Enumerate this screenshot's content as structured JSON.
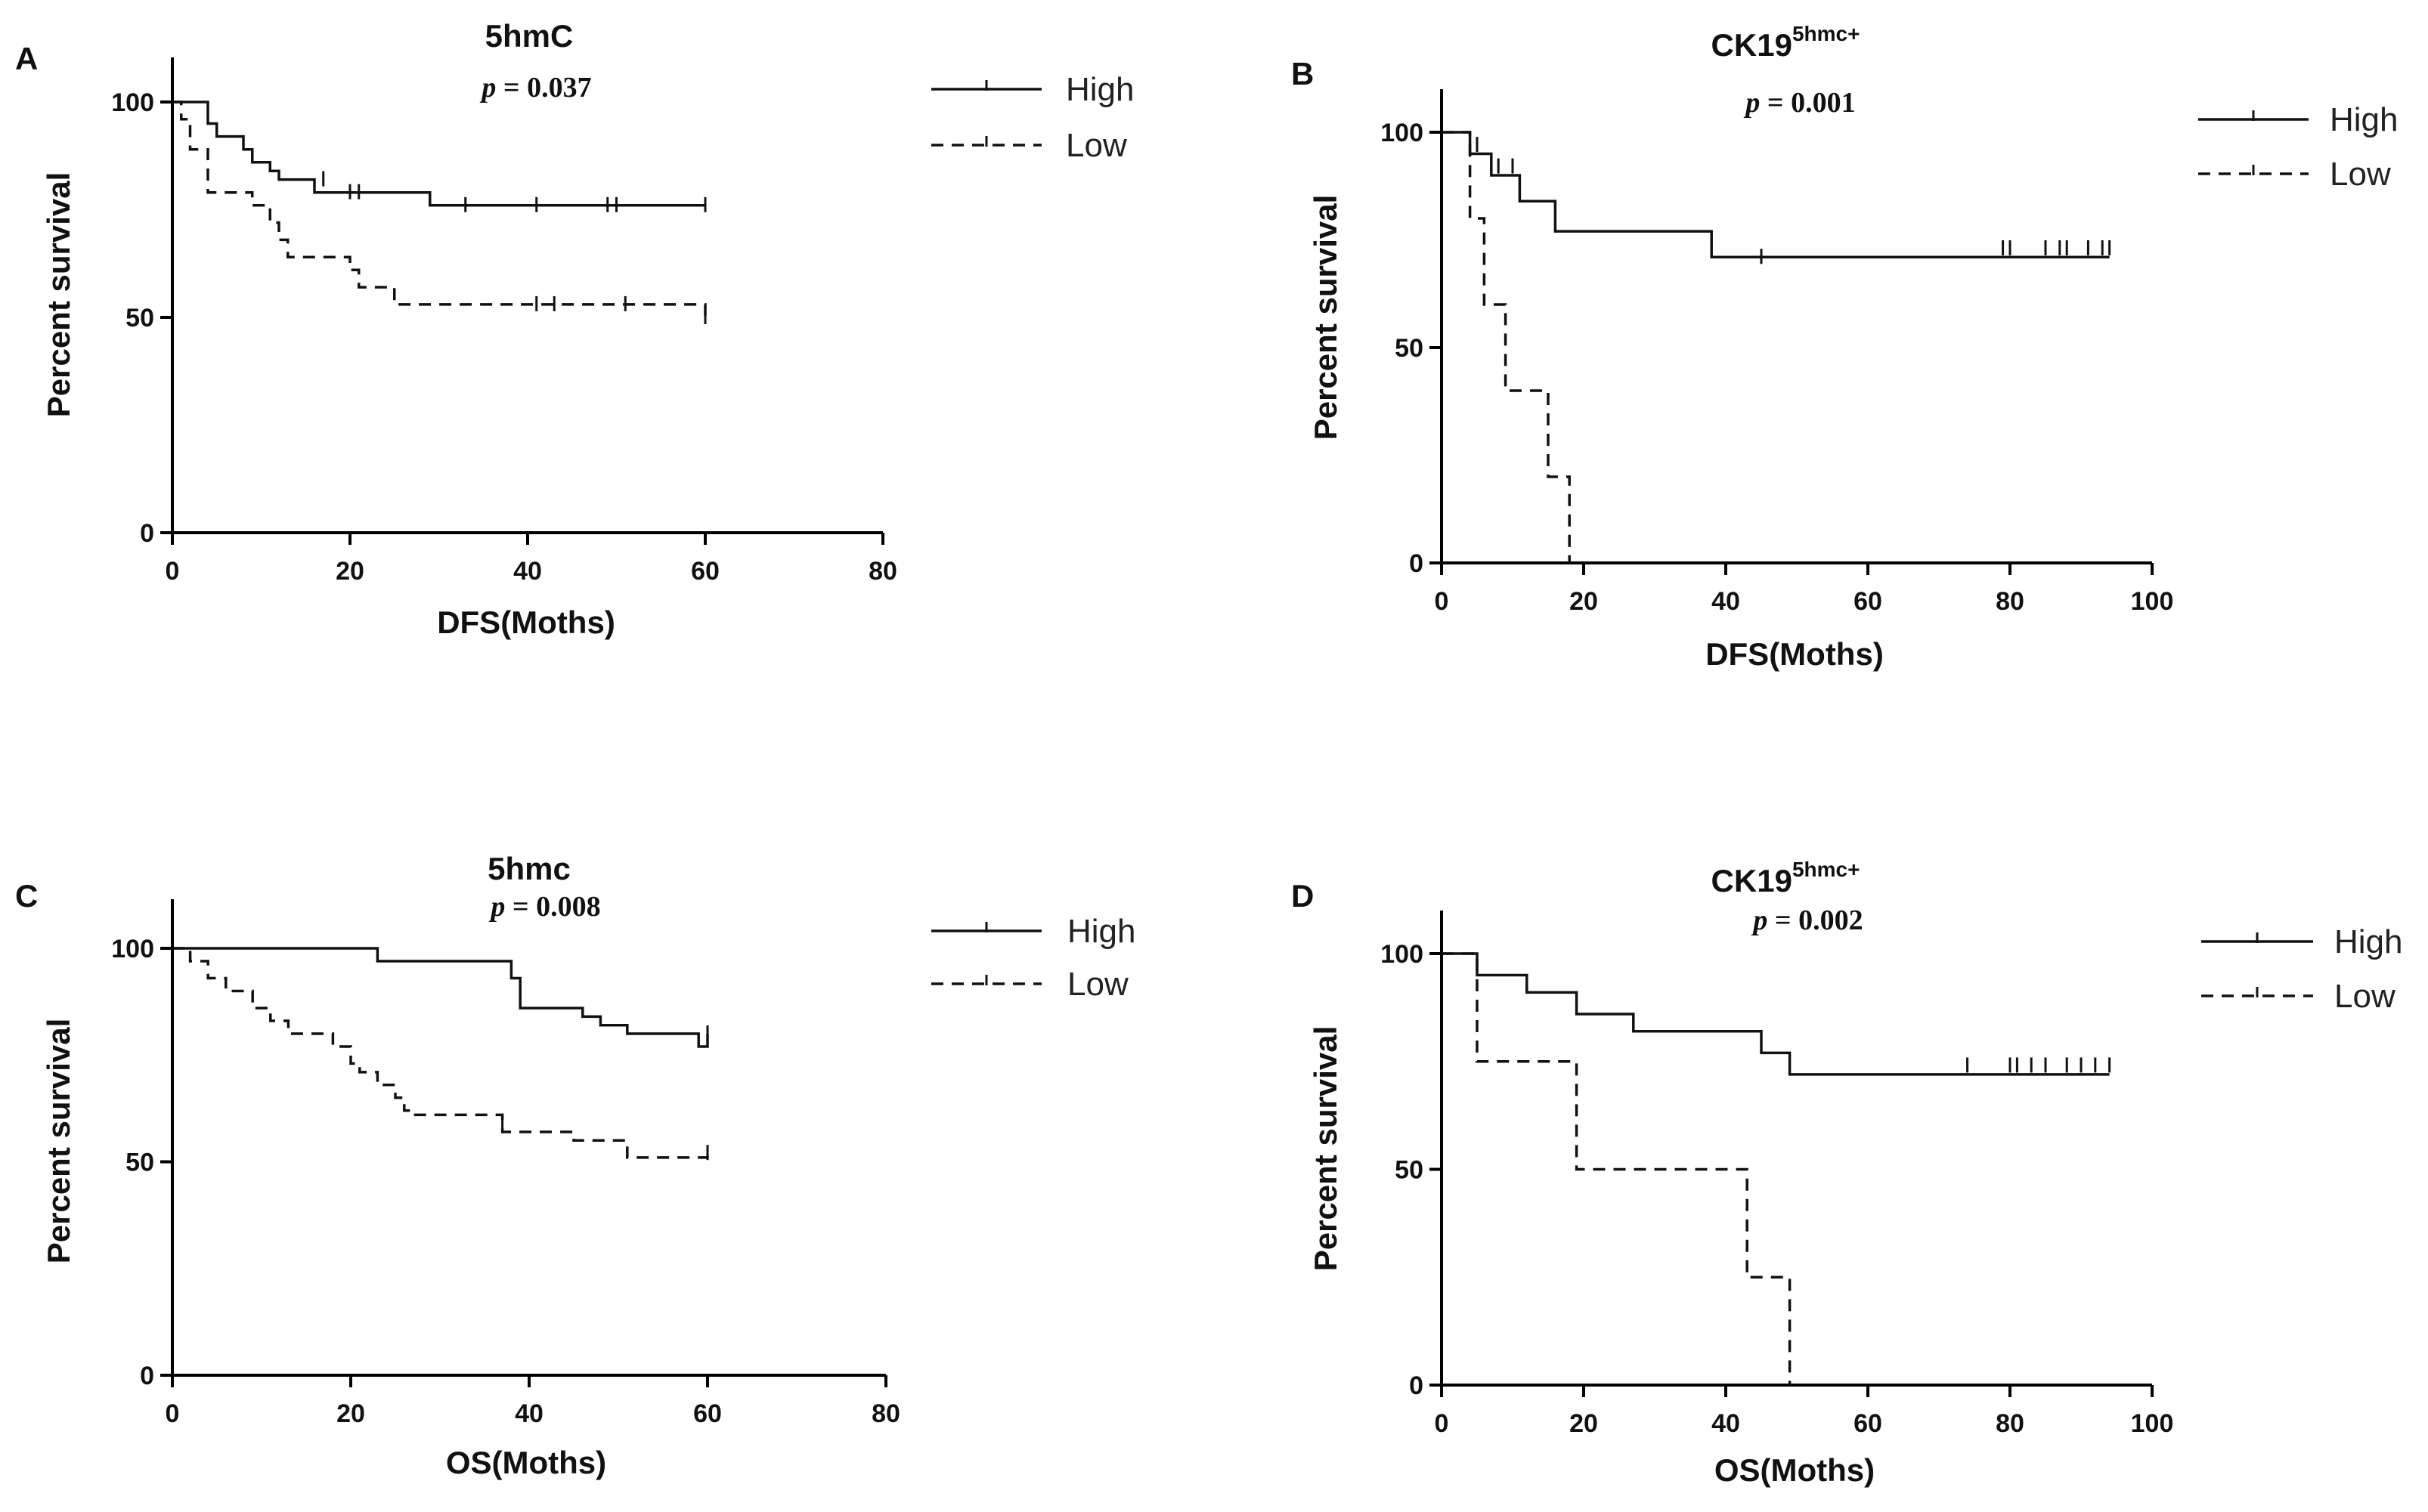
{
  "chart_data": [
    {
      "panel": "A",
      "type": "line",
      "subtype": "kaplan-meier",
      "title": "5hmC",
      "p_text": "= 0.037",
      "xlabel": "DFS(Moths)",
      "ylabel": "Percent survival",
      "xlim": [
        0,
        80
      ],
      "ylim": [
        0,
        110
      ],
      "xticks": [
        0,
        20,
        40,
        60,
        80
      ],
      "yticks": [
        0,
        50,
        100
      ],
      "legend_position": "right",
      "series": [
        {
          "name": "High",
          "style": "solid",
          "steps": [
            [
              0,
              100
            ],
            [
              4,
              95
            ],
            [
              5,
              92
            ],
            [
              8,
              89
            ],
            [
              9,
              86
            ],
            [
              11,
              84
            ],
            [
              12,
              82
            ],
            [
              16,
              79
            ],
            [
              29,
              76
            ],
            [
              60,
              76
            ]
          ],
          "censored": [
            [
              17,
              82
            ],
            [
              20,
              79
            ],
            [
              21,
              79
            ],
            [
              33,
              76
            ],
            [
              41,
              76
            ],
            [
              49,
              76
            ],
            [
              50,
              76
            ],
            [
              60,
              76
            ]
          ]
        },
        {
          "name": "Low",
          "style": "dashed",
          "steps": [
            [
              0,
              100
            ],
            [
              1,
              96
            ],
            [
              2,
              89
            ],
            [
              4,
              79
            ],
            [
              9,
              76
            ],
            [
              11,
              72
            ],
            [
              12,
              68
            ],
            [
              13,
              64
            ],
            [
              17,
              64
            ],
            [
              20,
              61
            ],
            [
              21,
              57
            ],
            [
              25,
              53
            ],
            [
              60,
              53
            ],
            [
              60,
              50
            ]
          ],
          "censored": [
            [
              41,
              53
            ],
            [
              43,
              53
            ],
            [
              51,
              53
            ],
            [
              60,
              50
            ]
          ]
        }
      ]
    },
    {
      "panel": "B",
      "type": "line",
      "subtype": "kaplan-meier",
      "title": "CK19",
      "title_sup": "5hmc+",
      "p_text": "= 0.001",
      "xlabel": "DFS(Moths)",
      "ylabel": "Percent survival",
      "xlim": [
        0,
        100
      ],
      "ylim": [
        0,
        100
      ],
      "xticks": [
        0,
        20,
        40,
        60,
        80,
        100
      ],
      "yticks": [
        0,
        50,
        100
      ],
      "legend_position": "right",
      "series": [
        {
          "name": "High",
          "style": "solid",
          "steps": [
            [
              0,
              100
            ],
            [
              4,
              95
            ],
            [
              7,
              90
            ],
            [
              11,
              84
            ],
            [
              15,
              84
            ],
            [
              16,
              77
            ],
            [
              38,
              71
            ],
            [
              94,
              71
            ]
          ],
          "censored": [
            [
              5,
              97
            ],
            [
              8,
              92
            ],
            [
              10,
              92
            ],
            [
              45,
              71
            ],
            [
              79,
              73
            ],
            [
              80,
              73
            ],
            [
              85,
              73
            ],
            [
              87,
              73
            ],
            [
              88,
              73
            ],
            [
              91,
              73
            ],
            [
              93,
              73
            ],
            [
              94,
              73
            ]
          ]
        },
        {
          "name": "Low",
          "style": "dashed",
          "steps": [
            [
              0,
              100
            ],
            [
              4,
              80
            ],
            [
              6,
              60
            ],
            [
              9,
              40
            ],
            [
              15,
              20
            ],
            [
              18,
              0
            ]
          ],
          "censored": []
        }
      ]
    },
    {
      "panel": "C",
      "type": "line",
      "subtype": "kaplan-meier",
      "title": "5hmc",
      "p_text": "= 0.008",
      "xlabel": "OS(Moths)",
      "ylabel": "Percent survival",
      "xlim": [
        0,
        80
      ],
      "ylim": [
        0,
        110
      ],
      "xticks": [
        0,
        20,
        40,
        60,
        80
      ],
      "yticks": [
        0,
        50,
        100
      ],
      "legend_position": "right",
      "series": [
        {
          "name": "High",
          "style": "solid",
          "steps": [
            [
              0,
              100
            ],
            [
              23,
              97
            ],
            [
              38,
              93
            ],
            [
              39,
              86
            ],
            [
              46,
              84
            ],
            [
              48,
              82
            ],
            [
              51,
              80
            ],
            [
              59,
              77
            ],
            [
              60,
              80
            ]
          ],
          "censored": [
            [
              60,
              80
            ]
          ]
        },
        {
          "name": "Low",
          "style": "dashed",
          "steps": [
            [
              0,
              100
            ],
            [
              2,
              97
            ],
            [
              4,
              93
            ],
            [
              6,
              90
            ],
            [
              9,
              86
            ],
            [
              11,
              83
            ],
            [
              13,
              80
            ],
            [
              18,
              77
            ],
            [
              20,
              73
            ],
            [
              21,
              71
            ],
            [
              23,
              68
            ],
            [
              25,
              65
            ],
            [
              26,
              62
            ],
            [
              27,
              61
            ],
            [
              37,
              57
            ],
            [
              45,
              55
            ],
            [
              51,
              51
            ],
            [
              60,
              52
            ]
          ],
          "censored": [
            [
              37,
              59
            ],
            [
              60,
              52
            ]
          ]
        }
      ]
    },
    {
      "panel": "D",
      "type": "line",
      "subtype": "kaplan-meier",
      "title": "CK19",
      "title_sup": "5hmc+",
      "p_text": "= 0.002",
      "xlabel": "OS(Moths)",
      "ylabel": "Percent survival",
      "xlim": [
        0,
        100
      ],
      "ylim": [
        0,
        100
      ],
      "xticks": [
        0,
        20,
        40,
        60,
        80,
        100
      ],
      "yticks": [
        0,
        50,
        100
      ],
      "legend_position": "right",
      "series": [
        {
          "name": "High",
          "style": "solid",
          "steps": [
            [
              0,
              100
            ],
            [
              5,
              95
            ],
            [
              12,
              91
            ],
            [
              19,
              86
            ],
            [
              27,
              82
            ],
            [
              45,
              77
            ],
            [
              49,
              72
            ],
            [
              94,
              72
            ]
          ],
          "censored": [
            [
              74,
              74
            ],
            [
              80,
              74
            ],
            [
              81,
              74
            ],
            [
              83,
              74
            ],
            [
              85,
              74
            ],
            [
              88,
              74
            ],
            [
              90,
              74
            ],
            [
              92,
              74
            ],
            [
              94,
              74
            ]
          ]
        },
        {
          "name": "Low",
          "style": "dashed",
          "steps": [
            [
              0,
              100
            ],
            [
              5,
              75
            ],
            [
              19,
              50
            ],
            [
              43,
              25
            ],
            [
              49,
              0
            ]
          ],
          "censored": []
        }
      ]
    }
  ]
}
